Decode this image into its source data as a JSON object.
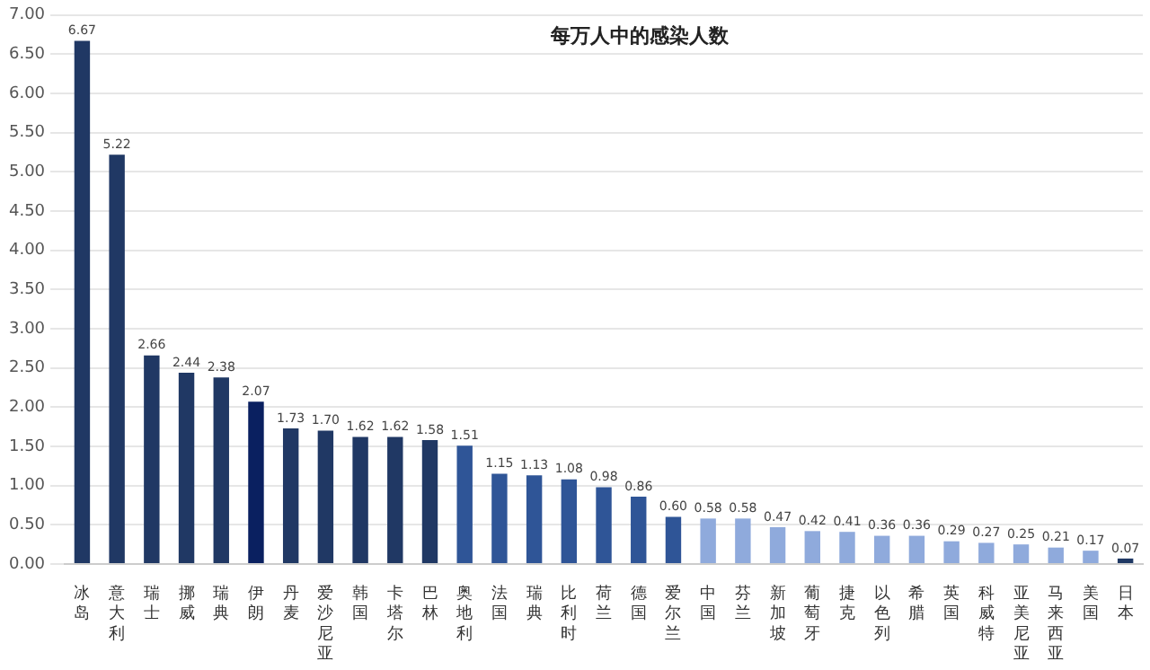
{
  "chart_data": {
    "type": "bar",
    "title": "每万人中的感染人数",
    "categories": [
      "冰岛",
      "意大利",
      "瑞士",
      "挪威",
      "瑞典",
      "伊朗",
      "丹麦",
      "爱沙尼亚",
      "韩国",
      "卡塔尔",
      "巴林",
      "奥地利",
      "法国",
      "瑞典",
      "比利时",
      "荷兰",
      "德国",
      "爱尔兰",
      "中国",
      "芬兰",
      "新加坡",
      "葡萄牙",
      "捷克",
      "以色列",
      "希腊",
      "英国",
      "科威特",
      "亚美尼亚",
      "马来西亚",
      "美国",
      "日本"
    ],
    "values": [
      6.67,
      5.22,
      2.66,
      2.44,
      2.38,
      2.07,
      1.73,
      1.7,
      1.62,
      1.62,
      1.58,
      1.51,
      1.15,
      1.13,
      1.08,
      0.98,
      0.86,
      0.6,
      0.58,
      0.58,
      0.47,
      0.42,
      0.41,
      0.36,
      0.36,
      0.29,
      0.27,
      0.25,
      0.21,
      0.17,
      0.07
    ],
    "value_labels": [
      "6.67",
      "5.22",
      "2.66",
      "2.44",
      "2.38",
      "2.07",
      "1.73",
      "1.70",
      "1.62",
      "1.62",
      "1.58",
      "1.51",
      "1.15",
      "1.13",
      "1.08",
      "0.98",
      "0.86",
      "0.60",
      "0.58",
      "0.58",
      "0.47",
      "0.42",
      "0.41",
      "0.36",
      "0.36",
      "0.29",
      "0.27",
      "0.25",
      "0.21",
      "0.17",
      "0.07"
    ],
    "colors": [
      "#203864",
      "#203864",
      "#203864",
      "#203864",
      "#203864",
      "#0a2060",
      "#203864",
      "#203864",
      "#203864",
      "#203864",
      "#203864",
      "#2f5597",
      "#2f5597",
      "#2f5597",
      "#2f5597",
      "#2f5597",
      "#2f5597",
      "#2f5597",
      "#8faadc",
      "#8faadc",
      "#8faadc",
      "#8faadc",
      "#8faadc",
      "#8faadc",
      "#8faadc",
      "#8faadc",
      "#8faadc",
      "#8faadc",
      "#8faadc",
      "#8faadc",
      "#1f3864"
    ],
    "ylim": [
      0,
      7
    ],
    "yticks": [
      {
        "value": 0,
        "label": "0.00"
      },
      {
        "value": 0.5,
        "label": "0.50"
      },
      {
        "value": 1,
        "label": "1.00"
      },
      {
        "value": 1.5,
        "label": "1.50"
      },
      {
        "value": 2,
        "label": "2.00"
      },
      {
        "value": 2.5,
        "label": "2.50"
      },
      {
        "value": 3,
        "label": "3.00"
      },
      {
        "value": 3.5,
        "label": "3.50"
      },
      {
        "value": 4,
        "label": "4.00"
      },
      {
        "value": 4.5,
        "label": "4.50"
      },
      {
        "value": 5,
        "label": "5.00"
      },
      {
        "value": 5.5,
        "label": "5.50"
      },
      {
        "value": 6,
        "label": "6.00"
      },
      {
        "value": 6.5,
        "label": "6.50"
      },
      {
        "value": 7,
        "label": "7.00"
      }
    ],
    "grid": "y",
    "legend": false
  }
}
